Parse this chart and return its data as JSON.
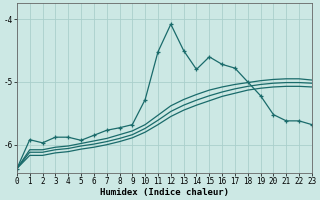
{
  "xlabel": "Humidex (Indice chaleur)",
  "xlim": [
    0,
    23
  ],
  "ylim": [
    -6.45,
    -3.75
  ],
  "yticks": [
    -6,
    -5,
    -4
  ],
  "xticks": [
    0,
    1,
    2,
    3,
    4,
    5,
    6,
    7,
    8,
    9,
    10,
    11,
    12,
    13,
    14,
    15,
    16,
    17,
    18,
    19,
    20,
    21,
    22,
    23
  ],
  "bg_color": "#cce8e4",
  "line_color": "#1a6b6b",
  "grid_color": "#aacfcc",
  "series": [
    {
      "x": [
        0,
        1,
        2,
        3,
        4,
        5,
        6,
        7,
        8,
        9,
        10,
        11,
        12,
        13,
        14,
        15,
        16,
        17,
        18,
        19,
        20,
        21,
        22,
        23
      ],
      "y": [
        -6.38,
        -5.92,
        -5.97,
        -5.88,
        -5.88,
        -5.93,
        -5.85,
        -5.77,
        -5.73,
        -5.68,
        -5.28,
        -4.52,
        -4.08,
        -4.5,
        -4.8,
        -4.6,
        -4.72,
        -4.78,
        -5.0,
        -5.22,
        -5.52,
        -5.62,
        -5.62,
        -5.68
      ],
      "marker": true,
      "linestyle": "-"
    },
    {
      "x": [
        0,
        1,
        2,
        3,
        4,
        5,
        6,
        7,
        8,
        9,
        10,
        11,
        12,
        13,
        14,
        15,
        16,
        17,
        18,
        19,
        20,
        21,
        22,
        23
      ],
      "y": [
        -6.38,
        -6.08,
        -6.08,
        -6.04,
        -6.02,
        -5.98,
        -5.94,
        -5.9,
        -5.84,
        -5.78,
        -5.68,
        -5.53,
        -5.38,
        -5.28,
        -5.2,
        -5.13,
        -5.08,
        -5.04,
        -5.01,
        -4.98,
        -4.96,
        -4.95,
        -4.95,
        -4.97
      ],
      "marker": false,
      "linestyle": "-"
    },
    {
      "x": [
        0,
        1,
        2,
        3,
        4,
        5,
        6,
        7,
        8,
        9,
        10,
        11,
        12,
        13,
        14,
        15,
        16,
        17,
        18,
        19,
        20,
        21,
        22,
        23
      ],
      "y": [
        -6.38,
        -6.12,
        -6.12,
        -6.08,
        -6.06,
        -6.02,
        -5.99,
        -5.95,
        -5.9,
        -5.84,
        -5.74,
        -5.61,
        -5.47,
        -5.37,
        -5.29,
        -5.22,
        -5.16,
        -5.11,
        -5.07,
        -5.04,
        -5.02,
        -5.01,
        -5.01,
        -5.02
      ],
      "marker": false,
      "linestyle": "-"
    },
    {
      "x": [
        0,
        1,
        2,
        3,
        4,
        5,
        6,
        7,
        8,
        9,
        10,
        11,
        12,
        13,
        14,
        15,
        16,
        17,
        18,
        19,
        20,
        21,
        22,
        23
      ],
      "y": [
        -6.38,
        -6.17,
        -6.17,
        -6.13,
        -6.11,
        -6.07,
        -6.04,
        -6.0,
        -5.95,
        -5.89,
        -5.8,
        -5.68,
        -5.55,
        -5.45,
        -5.37,
        -5.3,
        -5.23,
        -5.18,
        -5.13,
        -5.1,
        -5.08,
        -5.07,
        -5.07,
        -5.08
      ],
      "marker": false,
      "linestyle": "-"
    }
  ]
}
